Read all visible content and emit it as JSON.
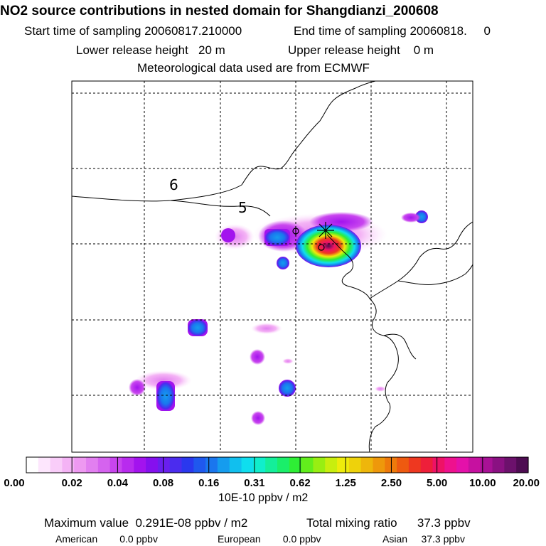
{
  "header": {
    "title": "NO2 source contributions in nested domain for Shangdianzi_200608",
    "start_label": "Start time of sampling 20060817.210000",
    "end_label": "End time of sampling 20060818.     0",
    "lower_release": "Lower release height   20 m",
    "upper_release": "Upper release height    0 m",
    "met_data": "Meteorological data used are from ECMWF"
  },
  "map": {
    "region_labels": [
      "6",
      "5"
    ],
    "receptor_marker": "station-cross"
  },
  "colorbar": {
    "tick_labels": [
      "0.00",
      "0.02",
      "0.04",
      "0.08",
      "0.16",
      "0.31",
      "0.62",
      "1.25",
      "2.50",
      "5.00",
      "10.00",
      "20.00"
    ],
    "units": "10E-10 ppbv / m2",
    "colors": [
      "#ffffff",
      "#fde6fd",
      "#f9cdf9",
      "#f4b3f5",
      "#ee99f1",
      "#e27ff0",
      "#d563ef",
      "#c845ee",
      "#b82bee",
      "#a313ee",
      "#8510ee",
      "#6a1fee",
      "#4b2cee",
      "#2a38ee",
      "#1f58ee",
      "#1a76ee",
      "#159cee",
      "#11bfee",
      "#0fdeee",
      "#10eecc",
      "#14ee9a",
      "#1aee6a",
      "#2eee35",
      "#62ee1c",
      "#98ee12",
      "#c8ee0e",
      "#eeec0b",
      "#eed20b",
      "#eeb60b",
      "#ee980b",
      "#ee7a0b",
      "#ee5a10",
      "#ee3820",
      "#ee1f3a",
      "#ee1266",
      "#ee118e",
      "#e411aa",
      "#c611a0",
      "#a81196",
      "#8a1182",
      "#6c116c",
      "#4e0c52"
    ]
  },
  "footer": {
    "max_value": "Maximum value  0.291E-08 ppbv / m2",
    "total_mixing": "Total mixing ratio      37.3 ppbv",
    "american": "American        0.0 ppbv",
    "european": "European        0.0 ppbv",
    "asian": "Asian     37.3 ppbv"
  }
}
